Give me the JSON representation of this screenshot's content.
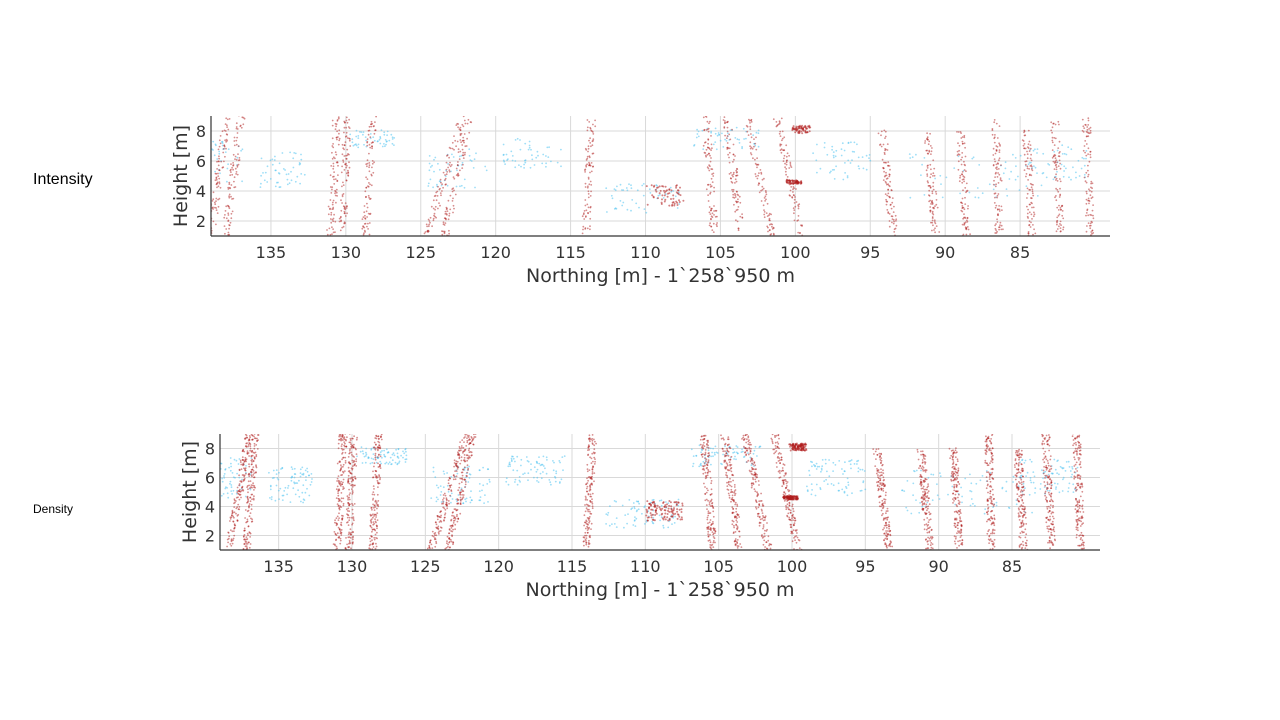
{
  "slide": {
    "labels": [
      "Intensity",
      "Density"
    ]
  },
  "colors": {
    "high_class": "#b01e1e",
    "low_class": "#4fc3f0",
    "grid": "#d9d9d9",
    "axis": "#333333"
  },
  "chart_data": [
    {
      "type": "scatter",
      "panel_label": "Intensity",
      "xlabel": "Northing [m] - 1`258`950 m",
      "ylabel": "Height [m]",
      "xlim": [
        139,
        79
      ],
      "x_reversed": true,
      "ylim": [
        1,
        9
      ],
      "xticks": [
        135,
        130,
        125,
        120,
        115,
        110,
        105,
        100,
        95,
        90,
        85
      ],
      "yticks": [
        2,
        4,
        6,
        8
      ],
      "grid": true,
      "series": [
        {
          "color": "#b01e1e",
          "stems": [
            [
              139,
              1,
              138,
              9
            ],
            [
              138,
              1,
              137,
              9
            ],
            [
              131,
              1,
              130.6,
              9
            ],
            [
              130.2,
              1,
              129.9,
              9
            ],
            [
              128.7,
              1,
              128.2,
              9
            ],
            [
              124.6,
              1,
              122.2,
              9
            ],
            [
              123.4,
              1,
              121.8,
              9
            ],
            [
              114,
              1,
              113.6,
              9
            ],
            [
              105.4,
              1,
              106,
              9
            ],
            [
              103.6,
              1,
              104.6,
              9
            ],
            [
              101.6,
              1,
              103.2,
              9
            ],
            [
              99.6,
              1,
              101.2,
              9
            ],
            [
              93.4,
              1,
              94.2,
              8
            ],
            [
              90.6,
              1,
              91.2,
              8
            ],
            [
              88.6,
              1,
              89.0,
              8
            ],
            [
              86.4,
              1,
              86.6,
              9
            ],
            [
              84.2,
              1,
              84.6,
              8
            ],
            [
              82.3,
              1,
              82.7,
              9
            ],
            [
              80.3,
              1,
              80.6,
              9
            ]
          ],
          "clusters": [
            [
              99.6,
              8.1,
              1.2,
              0.5
            ],
            [
              100.1,
              4.6,
              1.0,
              0.25
            ],
            [
              108.7,
              3.7,
              2.5,
              1.4
            ]
          ]
        },
        {
          "color": "#4fc3f0",
          "canopies": [
            [
              138.6,
              6.0,
              3.5,
              2.8
            ],
            [
              134.2,
              5.5,
              3.0,
              2.5
            ],
            [
              128.0,
              7.5,
              3.5,
              1.2
            ],
            [
              122.6,
              5.5,
              4.0,
              2.6
            ],
            [
              117.5,
              6.5,
              4.0,
              2.0
            ],
            [
              110.2,
              3.5,
              5.0,
              2.0
            ],
            [
              104.5,
              7.5,
              5.0,
              1.5
            ],
            [
              97.0,
              6.0,
              4.0,
              2.5
            ],
            [
              88.0,
              5.0,
              9.0,
              3.0
            ],
            [
              82.5,
              6.0,
              4.0,
              2.5
            ]
          ]
        }
      ]
    },
    {
      "type": "scatter",
      "panel_label": "Density",
      "xlabel": "Northing [m] - 1`258`950 m",
      "ylabel": "Height [m]",
      "xlim": [
        139,
        79
      ],
      "x_reversed": true,
      "ylim": [
        1,
        9
      ],
      "xticks": [
        135,
        130,
        125,
        120,
        115,
        110,
        105,
        100,
        95,
        90,
        85
      ],
      "yticks": [
        2,
        4,
        6,
        8
      ],
      "grid": true,
      "series": [
        {
          "color": "#b01e1e",
          "stems": [
            [
              138.4,
              1,
              137.0,
              9
            ],
            [
              137.2,
              1,
              136.6,
              9
            ],
            [
              131.0,
              1,
              130.6,
              9
            ],
            [
              130.2,
              1,
              129.9,
              9
            ],
            [
              128.6,
              1,
              128.2,
              9
            ],
            [
              124.6,
              1,
              122.2,
              9
            ],
            [
              123.4,
              1,
              121.8,
              9
            ],
            [
              114,
              1,
              113.6,
              9
            ],
            [
              105.4,
              1,
              106,
              9
            ],
            [
              103.6,
              1,
              104.6,
              9
            ],
            [
              101.6,
              1,
              103.2,
              9
            ],
            [
              99.6,
              1,
              101.2,
              9
            ],
            [
              93.4,
              1,
              94.2,
              8
            ],
            [
              90.6,
              1,
              91.2,
              8
            ],
            [
              88.6,
              1,
              89.0,
              8
            ],
            [
              86.4,
              1,
              86.6,
              9
            ],
            [
              84.2,
              1,
              84.6,
              8
            ],
            [
              82.3,
              1,
              82.7,
              9
            ],
            [
              80.3,
              1,
              80.6,
              9
            ]
          ],
          "clusters": [
            [
              99.6,
              8.1,
              1.2,
              0.5
            ],
            [
              100.1,
              4.6,
              1.0,
              0.25
            ],
            [
              108.7,
              3.7,
              2.5,
              1.4
            ]
          ]
        },
        {
          "color": "#4fc3f0",
          "canopies": [
            [
              138.6,
              6.0,
              3.5,
              2.8
            ],
            [
              134.2,
              5.5,
              3.0,
              2.5
            ],
            [
              128.0,
              7.5,
              3.5,
              1.2
            ],
            [
              122.6,
              5.5,
              4.0,
              2.6
            ],
            [
              117.5,
              6.5,
              4.0,
              2.0
            ],
            [
              110.2,
              3.5,
              5.0,
              2.0
            ],
            [
              104.5,
              7.5,
              5.0,
              1.5
            ],
            [
              97.0,
              6.0,
              4.0,
              2.5
            ],
            [
              88.0,
              5.0,
              9.0,
              3.0
            ],
            [
              82.5,
              6.0,
              4.0,
              2.5
            ]
          ]
        }
      ]
    }
  ]
}
